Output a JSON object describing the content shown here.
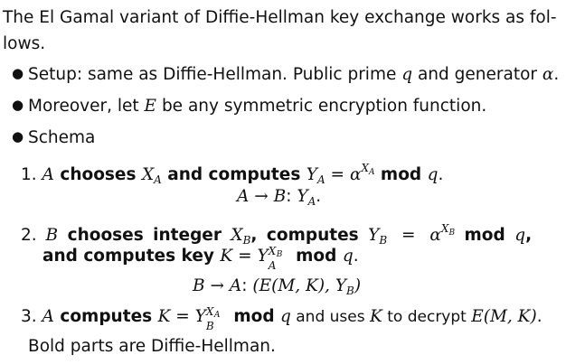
{
  "intro": {
    "line1": "The El Gamal variant of Diffie-Hellman key exchange works as fol-",
    "line2": "lows."
  },
  "bullets": {
    "setup_prefix": "Setup: same as Diffie-Hellman.  Public prime ",
    "setup_q": "q",
    "setup_and": " and generator ",
    "setup_alpha": "α",
    "setup_end": ".",
    "moreover_prefix": "Moreover, let ",
    "moreover_E": "E",
    "moreover_suffix": " be any symmetric encryption function.",
    "schema": "Schema"
  },
  "steps": {
    "s1": {
      "num": "1.",
      "A": "A",
      "chooses": " chooses ",
      "X": "X",
      "X_sub": "A",
      "and_computes": " and computes ",
      "Y": "Y",
      "Y_sub": "A",
      "eq": " = ",
      "alpha": "α",
      "sup_X": "X",
      "sup_sub": "A",
      "mod": " mod ",
      "q": "q",
      "end": ".",
      "msg_from": "A",
      "arrow": " → ",
      "msg_to": "B",
      "msg_colon": ": ",
      "msg_Y": "Y",
      "msg_Y_sub": "A",
      "msg_end": "."
    },
    "s2": {
      "num": "2.",
      "B": "B",
      "chooses": " chooses integer ",
      "X": "X",
      "X_sub": "B",
      "computes": ", computes ",
      "Y": "Y",
      "Y_sub": "B",
      "eq": " = ",
      "alpha": "α",
      "sup_X": "X",
      "sup_sub": "B",
      "mod": " mod ",
      "q": "q",
      "comma": ",",
      "and_key": "and computes key ",
      "K": "K",
      "eq2": " = ",
      "Y2": "Y",
      "Y2_sub": "A",
      "Y2_sup": "X",
      "Y2_sup_sub": "B",
      "mod2": " mod ",
      "q2": "q",
      "end": ".",
      "msg_from": "B",
      "arrow": " → ",
      "msg_to": "A",
      "msg_colon": ":  ",
      "msg_body": "(E(M, K), Y",
      "msg_sub": "B",
      "msg_close": ")"
    },
    "s3": {
      "num": "3.",
      "A": "A",
      "computes": " computes ",
      "K": "K",
      "eq": " = ",
      "Y": "Y",
      "Y_sub": "B",
      "Y_sup": "X",
      "Y_sup_sub": "A",
      "mod": " mod ",
      "q": "q",
      "rest": " and uses ",
      "K2": "K",
      "rest2": " to decrypt ",
      "E": "E(M, K)",
      "end": "."
    }
  },
  "footer": "Bold parts are Diffie-Hellman."
}
